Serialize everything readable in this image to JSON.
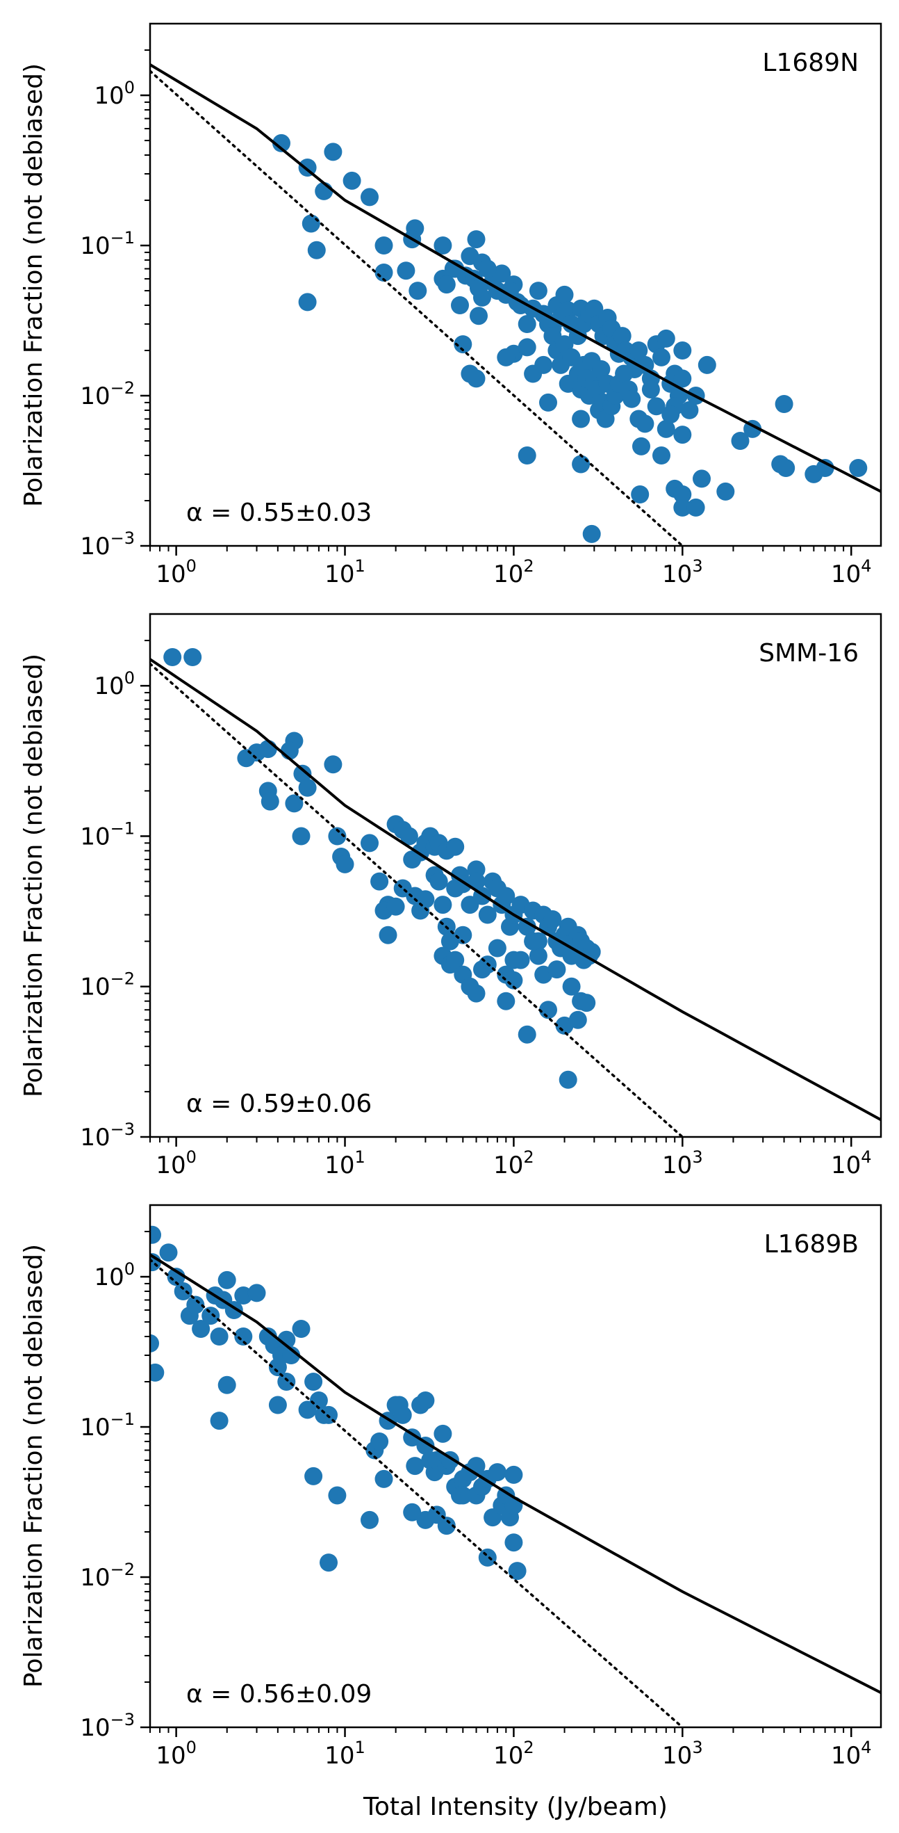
{
  "figure": {
    "xlabel": "Total Intensity (Jy/beam)",
    "ylabel": "Polarization Fraction (not debiased)",
    "colors": {
      "points": "#1f77b4",
      "lines": "#000000"
    }
  },
  "chart_data": [
    {
      "type": "scatter",
      "label": "L1689N",
      "alpha_text": "α = 0.55±0.03",
      "xscale": "log",
      "yscale": "log",
      "xlim": [
        0.7,
        15000
      ],
      "ylim": [
        0.001,
        3
      ],
      "xticks": [
        1,
        10,
        100,
        1000,
        10000
      ],
      "yticks": [
        0.001,
        0.01,
        0.1,
        1
      ],
      "fit_line": {
        "style": "solid",
        "x": [
          0.7,
          3,
          10,
          100,
          1000,
          15000
        ],
        "y": [
          1.6,
          0.6,
          0.2,
          0.045,
          0.011,
          0.0023
        ]
      },
      "reference_line": {
        "style": "dotted",
        "x": [
          0.7,
          1000
        ],
        "y": [
          1.45,
          0.001
        ]
      },
      "points": [
        [
          4.2,
          0.48
        ],
        [
          6.0,
          0.33
        ],
        [
          8.5,
          0.42
        ],
        [
          11,
          0.27
        ],
        [
          7.5,
          0.23
        ],
        [
          14,
          0.21
        ],
        [
          6.3,
          0.14
        ],
        [
          6.8,
          0.093
        ],
        [
          6.0,
          0.042
        ],
        [
          17,
          0.1
        ],
        [
          17,
          0.066
        ],
        [
          26,
          0.13
        ],
        [
          25,
          0.11
        ],
        [
          23,
          0.068
        ],
        [
          27,
          0.05
        ],
        [
          38,
          0.1
        ],
        [
          44,
          0.07
        ],
        [
          52,
          0.063
        ],
        [
          55,
          0.085
        ],
        [
          60,
          0.11
        ],
        [
          65,
          0.077
        ],
        [
          48,
          0.04
        ],
        [
          65,
          0.045
        ],
        [
          62,
          0.034
        ],
        [
          75,
          0.057
        ],
        [
          80,
          0.05
        ],
        [
          85,
          0.065
        ],
        [
          90,
          0.047
        ],
        [
          100,
          0.055
        ],
        [
          110,
          0.04
        ],
        [
          120,
          0.03
        ],
        [
          130,
          0.038
        ],
        [
          140,
          0.05
        ],
        [
          150,
          0.035
        ],
        [
          160,
          0.03
        ],
        [
          170,
          0.028
        ],
        [
          180,
          0.04
        ],
        [
          190,
          0.033
        ],
        [
          200,
          0.047
        ],
        [
          210,
          0.037
        ],
        [
          220,
          0.03
        ],
        [
          240,
          0.025
        ],
        [
          250,
          0.038
        ],
        [
          260,
          0.03
        ],
        [
          280,
          0.035
        ],
        [
          300,
          0.038
        ],
        [
          320,
          0.03
        ],
        [
          340,
          0.025
        ],
        [
          360,
          0.033
        ],
        [
          380,
          0.028
        ],
        [
          400,
          0.022
        ],
        [
          420,
          0.019
        ],
        [
          440,
          0.025
        ],
        [
          460,
          0.02
        ],
        [
          500,
          0.018
        ],
        [
          520,
          0.015
        ],
        [
          550,
          0.02
        ],
        [
          600,
          0.016
        ],
        [
          650,
          0.013
        ],
        [
          700,
          0.022
        ],
        [
          750,
          0.018
        ],
        [
          800,
          0.024
        ],
        [
          850,
          0.012
        ],
        [
          900,
          0.014
        ],
        [
          950,
          0.01
        ],
        [
          1000,
          0.013
        ],
        [
          1100,
          0.008
        ],
        [
          1200,
          0.01
        ],
        [
          1400,
          0.016
        ],
        [
          1000,
          0.02
        ],
        [
          1000,
          0.0055
        ],
        [
          900,
          0.0085
        ],
        [
          100,
          0.019
        ],
        [
          90,
          0.018
        ],
        [
          120,
          0.021
        ],
        [
          130,
          0.014
        ],
        [
          150,
          0.016
        ],
        [
          160,
          0.009
        ],
        [
          170,
          0.025
        ],
        [
          180,
          0.02
        ],
        [
          190,
          0.016
        ],
        [
          200,
          0.022
        ],
        [
          210,
          0.012
        ],
        [
          220,
          0.018
        ],
        [
          240,
          0.014
        ],
        [
          250,
          0.011
        ],
        [
          260,
          0.016
        ],
        [
          270,
          0.013
        ],
        [
          280,
          0.01
        ],
        [
          290,
          0.017
        ],
        [
          300,
          0.013
        ],
        [
          310,
          0.011
        ],
        [
          320,
          0.008
        ],
        [
          330,
          0.015
        ],
        [
          340,
          0.009
        ],
        [
          350,
          0.007
        ],
        [
          360,
          0.012
        ],
        [
          380,
          0.0085
        ],
        [
          400,
          0.01
        ],
        [
          420,
          0.012
        ],
        [
          450,
          0.014
        ],
        [
          480,
          0.011
        ],
        [
          500,
          0.0095
        ],
        [
          550,
          0.007
        ],
        [
          570,
          0.0046
        ],
        [
          600,
          0.0065
        ],
        [
          650,
          0.011
        ],
        [
          700,
          0.0085
        ],
        [
          750,
          0.004
        ],
        [
          800,
          0.006
        ],
        [
          850,
          0.0075
        ],
        [
          900,
          0.0024
        ],
        [
          1000,
          0.0018
        ],
        [
          1200,
          0.0018
        ],
        [
          1300,
          0.0028
        ],
        [
          1800,
          0.0023
        ],
        [
          2200,
          0.005
        ],
        [
          2600,
          0.006
        ],
        [
          3800,
          0.0035
        ],
        [
          4000,
          0.0088
        ],
        [
          4100,
          0.0033
        ],
        [
          6000,
          0.003
        ],
        [
          7000,
          0.0033
        ],
        [
          11000,
          0.0033
        ],
        [
          250,
          0.0035
        ],
        [
          120,
          0.004
        ],
        [
          250,
          0.007
        ],
        [
          290,
          0.0012
        ],
        [
          60,
          0.013
        ],
        [
          55,
          0.014
        ],
        [
          50,
          0.022
        ],
        [
          38,
          0.06
        ],
        [
          40,
          0.055
        ],
        [
          45,
          0.07
        ],
        [
          58,
          0.06
        ],
        [
          62,
          0.052
        ],
        [
          70,
          0.07
        ],
        [
          95,
          0.05
        ],
        [
          105,
          0.042
        ],
        [
          560,
          0.0022
        ],
        [
          1000,
          0.0022
        ]
      ]
    },
    {
      "type": "scatter",
      "label": "SMM-16",
      "alpha_text": "α = 0.59±0.06",
      "xscale": "log",
      "yscale": "log",
      "xlim": [
        0.7,
        15000
      ],
      "ylim": [
        0.001,
        3
      ],
      "xticks": [
        1,
        10,
        100,
        1000,
        10000
      ],
      "yticks": [
        0.001,
        0.01,
        0.1,
        1
      ],
      "fit_line": {
        "style": "solid",
        "x": [
          0.7,
          3,
          10,
          100,
          1000,
          15000
        ],
        "y": [
          1.5,
          0.5,
          0.16,
          0.03,
          0.0068,
          0.0013
        ]
      },
      "reference_line": {
        "style": "dotted",
        "x": [
          0.7,
          1000
        ],
        "y": [
          1.4,
          0.001
        ]
      },
      "points": [
        [
          0.95,
          1.55
        ],
        [
          1.25,
          1.55
        ],
        [
          2.6,
          0.33
        ],
        [
          3.0,
          0.36
        ],
        [
          3.5,
          0.38
        ],
        [
          5.0,
          0.43
        ],
        [
          4.7,
          0.37
        ],
        [
          5.6,
          0.26
        ],
        [
          6.0,
          0.21
        ],
        [
          8.5,
          0.3
        ],
        [
          3.5,
          0.2
        ],
        [
          3.6,
          0.17
        ],
        [
          5.0,
          0.165
        ],
        [
          5.5,
          0.1
        ],
        [
          9.0,
          0.1
        ],
        [
          9.5,
          0.073
        ],
        [
          10,
          0.065
        ],
        [
          14,
          0.09
        ],
        [
          16,
          0.05
        ],
        [
          18,
          0.035
        ],
        [
          17,
          0.032
        ],
        [
          20,
          0.034
        ],
        [
          18,
          0.022
        ],
        [
          20,
          0.12
        ],
        [
          22,
          0.11
        ],
        [
          24,
          0.1
        ],
        [
          25,
          0.07
        ],
        [
          28,
          0.078
        ],
        [
          30,
          0.09
        ],
        [
          32,
          0.1
        ],
        [
          34,
          0.085
        ],
        [
          36,
          0.09
        ],
        [
          40,
          0.08
        ],
        [
          45,
          0.085
        ],
        [
          22,
          0.045
        ],
        [
          26,
          0.04
        ],
        [
          30,
          0.038
        ],
        [
          28,
          0.032
        ],
        [
          34,
          0.055
        ],
        [
          36,
          0.05
        ],
        [
          38,
          0.035
        ],
        [
          40,
          0.025
        ],
        [
          42,
          0.02
        ],
        [
          45,
          0.045
        ],
        [
          48,
          0.055
        ],
        [
          50,
          0.048
        ],
        [
          55,
          0.035
        ],
        [
          60,
          0.06
        ],
        [
          65,
          0.04
        ],
        [
          70,
          0.03
        ],
        [
          75,
          0.05
        ],
        [
          80,
          0.045
        ],
        [
          85,
          0.035
        ],
        [
          90,
          0.04
        ],
        [
          95,
          0.025
        ],
        [
          100,
          0.03
        ],
        [
          110,
          0.035
        ],
        [
          120,
          0.025
        ],
        [
          130,
          0.032
        ],
        [
          140,
          0.02
        ],
        [
          150,
          0.03
        ],
        [
          160,
          0.025
        ],
        [
          170,
          0.028
        ],
        [
          180,
          0.02
        ],
        [
          190,
          0.018
        ],
        [
          200,
          0.022
        ],
        [
          210,
          0.025
        ],
        [
          220,
          0.016
        ],
        [
          230,
          0.019
        ],
        [
          240,
          0.022
        ],
        [
          250,
          0.02
        ],
        [
          260,
          0.015
        ],
        [
          270,
          0.018
        ],
        [
          280,
          0.016
        ],
        [
          290,
          0.017
        ],
        [
          38,
          0.016
        ],
        [
          42,
          0.014
        ],
        [
          45,
          0.015
        ],
        [
          50,
          0.012
        ],
        [
          55,
          0.01
        ],
        [
          60,
          0.009
        ],
        [
          65,
          0.013
        ],
        [
          70,
          0.014
        ],
        [
          80,
          0.018
        ],
        [
          90,
          0.012
        ],
        [
          100,
          0.011
        ],
        [
          110,
          0.015
        ],
        [
          120,
          0.0048
        ],
        [
          140,
          0.016
        ],
        [
          150,
          0.012
        ],
        [
          160,
          0.007
        ],
        [
          180,
          0.013
        ],
        [
          200,
          0.0055
        ],
        [
          210,
          0.0024
        ],
        [
          220,
          0.01
        ],
        [
          240,
          0.006
        ],
        [
          250,
          0.008
        ],
        [
          270,
          0.0078
        ],
        [
          50,
          0.022
        ],
        [
          60,
          0.05
        ],
        [
          90,
          0.008
        ],
        [
          100,
          0.015
        ],
        [
          130,
          0.02
        ]
      ]
    },
    {
      "type": "scatter",
      "label": "L1689B",
      "alpha_text": "α = 0.56±0.09",
      "xscale": "log",
      "yscale": "log",
      "xlim": [
        0.7,
        15000
      ],
      "ylim": [
        0.001,
        3
      ],
      "xticks": [
        1,
        10,
        100,
        1000,
        10000
      ],
      "yticks": [
        0.001,
        0.01,
        0.1,
        1
      ],
      "fit_line": {
        "style": "solid",
        "x": [
          0.7,
          3,
          10,
          100,
          1000,
          15000
        ],
        "y": [
          1.4,
          0.5,
          0.17,
          0.034,
          0.008,
          0.0017
        ]
      },
      "reference_line": {
        "style": "dotted",
        "x": [
          0.7,
          1000
        ],
        "y": [
          1.3,
          0.001
        ]
      },
      "points": [
        [
          0.72,
          1.9
        ],
        [
          0.72,
          1.25
        ],
        [
          0.7,
          0.36
        ],
        [
          0.75,
          0.23
        ],
        [
          0.9,
          1.45
        ],
        [
          1.0,
          1.0
        ],
        [
          1.1,
          0.8
        ],
        [
          1.2,
          0.55
        ],
        [
          1.3,
          0.65
        ],
        [
          1.4,
          0.45
        ],
        [
          1.6,
          0.55
        ],
        [
          1.7,
          0.75
        ],
        [
          1.8,
          0.4
        ],
        [
          1.9,
          0.7
        ],
        [
          2.0,
          0.95
        ],
        [
          2.2,
          0.6
        ],
        [
          2.5,
          0.75
        ],
        [
          2.5,
          0.4
        ],
        [
          3.0,
          0.78
        ],
        [
          3.5,
          0.4
        ],
        [
          3.8,
          0.35
        ],
        [
          4.0,
          0.25
        ],
        [
          4.2,
          0.3
        ],
        [
          4.5,
          0.38
        ],
        [
          4.8,
          0.3
        ],
        [
          5.5,
          0.45
        ],
        [
          6.0,
          0.13
        ],
        [
          6.5,
          0.2
        ],
        [
          7.0,
          0.15
        ],
        [
          7.5,
          0.12
        ],
        [
          8.0,
          0.12
        ],
        [
          9.0,
          0.035
        ],
        [
          4.0,
          0.14
        ],
        [
          4.5,
          0.2
        ],
        [
          1.8,
          0.11
        ],
        [
          2.0,
          0.19
        ],
        [
          6.5,
          0.047
        ],
        [
          8.0,
          0.0125
        ],
        [
          14,
          0.024
        ],
        [
          15,
          0.07
        ],
        [
          16,
          0.08
        ],
        [
          17,
          0.045
        ],
        [
          18,
          0.11
        ],
        [
          20,
          0.14
        ],
        [
          21,
          0.14
        ],
        [
          22,
          0.12
        ],
        [
          25,
          0.085
        ],
        [
          26,
          0.055
        ],
        [
          28,
          0.14
        ],
        [
          30,
          0.15
        ],
        [
          30,
          0.075
        ],
        [
          32,
          0.06
        ],
        [
          34,
          0.05
        ],
        [
          35,
          0.06
        ],
        [
          38,
          0.09
        ],
        [
          40,
          0.055
        ],
        [
          42,
          0.06
        ],
        [
          45,
          0.04
        ],
        [
          48,
          0.035
        ],
        [
          50,
          0.045
        ],
        [
          55,
          0.05
        ],
        [
          60,
          0.035
        ],
        [
          65,
          0.04
        ],
        [
          70,
          0.045
        ],
        [
          75,
          0.025
        ],
        [
          80,
          0.05
        ],
        [
          85,
          0.03
        ],
        [
          90,
          0.035
        ],
        [
          95,
          0.025
        ],
        [
          100,
          0.03
        ],
        [
          100,
          0.017
        ],
        [
          105,
          0.011
        ],
        [
          100,
          0.048
        ],
        [
          70,
          0.0135
        ],
        [
          40,
          0.022
        ],
        [
          30,
          0.024
        ],
        [
          25,
          0.027
        ],
        [
          35,
          0.026
        ],
        [
          60,
          0.055
        ],
        [
          50,
          0.035
        ]
      ]
    }
  ]
}
